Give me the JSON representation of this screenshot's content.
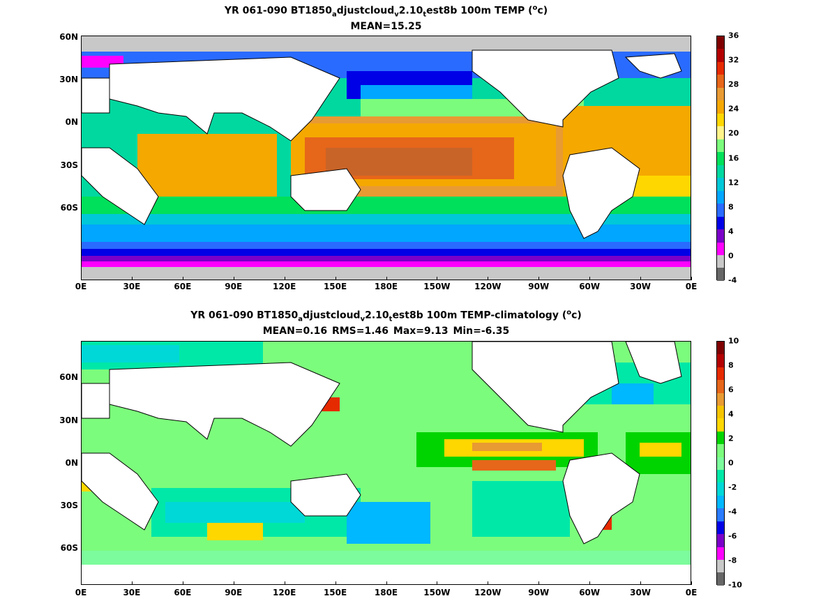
{
  "panels": [
    {
      "title_prefix": "YR 061-090 BT1850",
      "title_sub1": "a",
      "title_mid1": "djustcloud",
      "title_sub2": "v",
      "title_mid2": "2.10",
      "title_sub3": "t",
      "title_mid3": "est8b 100m TEMP (",
      "title_sup": "o",
      "title_end": "c)",
      "stats": "MEAN=15.25",
      "colorbar_labels": [
        "36",
        "32",
        "28",
        "24",
        "20",
        "16",
        "12",
        "8",
        "4",
        "0",
        "-4"
      ],
      "colorbar_colors": [
        "#7f0000",
        "#b30000",
        "#e62a00",
        "#e6661a",
        "#e89a33",
        "#f5a800",
        "#ffd700",
        "#fff38a",
        "#7cfc7c",
        "#00e05a",
        "#00d8a0",
        "#00c8d8",
        "#00a6ff",
        "#2a6bff",
        "#0000e6",
        "#7a00c8",
        "#ff00ff",
        "#c8c8c8",
        "#666666"
      ],
      "colorbar_min": -4,
      "colorbar_max": 36
    },
    {
      "title_prefix": "YR 061-090 BT1850",
      "title_sub1": "a",
      "title_mid1": "djustcloud",
      "title_sub2": "v",
      "title_mid2": "2.10",
      "title_sub3": "t",
      "title_mid3": "est8b 100m TEMP-climatology (",
      "title_sup": "o",
      "title_end": "c)",
      "stats": "MEAN=0.16   RMS=1.46   Max=9.13   Min=-6.35",
      "colorbar_labels": [
        "10",
        "8",
        "6",
        "4",
        "2",
        "0",
        "-2",
        "-4",
        "-6",
        "-8",
        "-10"
      ],
      "colorbar_colors": [
        "#7f0000",
        "#b30000",
        "#e62a00",
        "#e6661a",
        "#e89a33",
        "#f5c400",
        "#ffd700",
        "#00d400",
        "#7cfc7c",
        "#7cfc9c",
        "#00e8a8",
        "#00d8d8",
        "#00b8ff",
        "#2a7bff",
        "#0000e6",
        "#7a00c8",
        "#ff00ff",
        "#c8c8c8",
        "#666666"
      ],
      "colorbar_min": -10,
      "colorbar_max": 10
    }
  ],
  "x_ticks": [
    "0E",
    "30E",
    "60E",
    "90E",
    "120E",
    "150E",
    "180E",
    "150W",
    "120W",
    "90W",
    "60W",
    "30W",
    "0E"
  ],
  "y_ticks_top": [
    "60N",
    "30N",
    "0N",
    "30S",
    "60S"
  ],
  "y_ticks_bottom": [
    "60N",
    "30N",
    "0N",
    "30S",
    "60S"
  ]
}
